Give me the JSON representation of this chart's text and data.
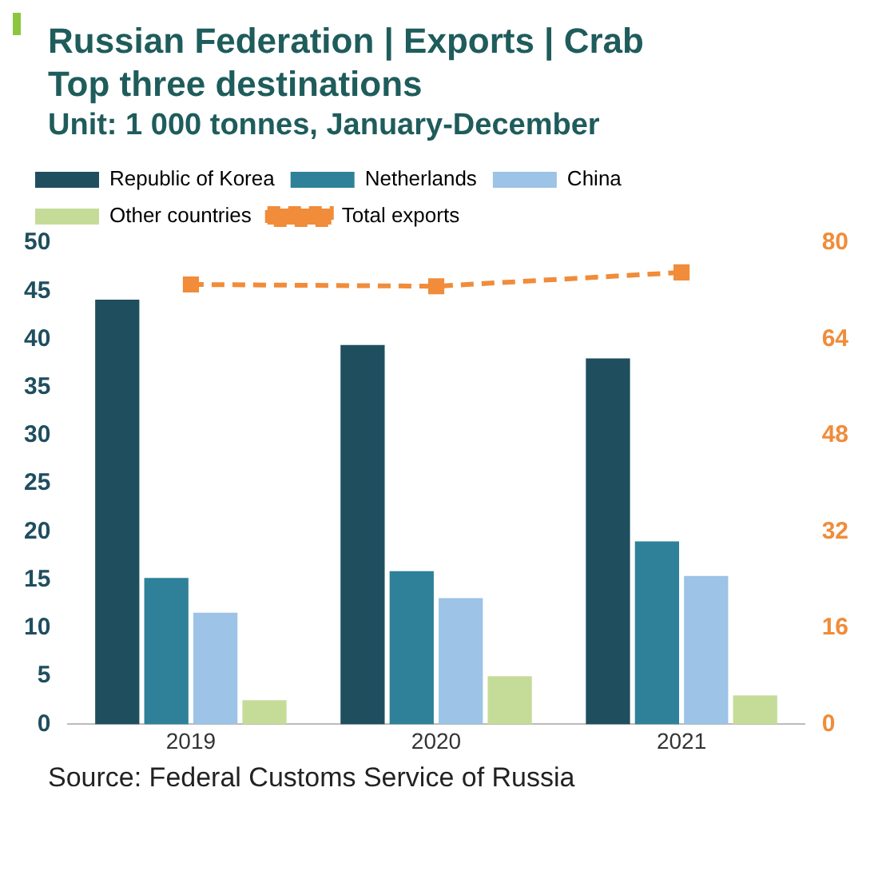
{
  "chart_data": {
    "type": "bar",
    "title": "Russian Federation | Exports | Crab",
    "subtitle": "Top three destinations",
    "xlabel": null,
    "annotations": [
      "Unit: 1 000 tonnes, January-December",
      "Source: Federal Customs Service of Russia"
    ],
    "categories": [
      "2019",
      "2020",
      "2021"
    ],
    "series": [
      {
        "name": "Republic of Korea",
        "color": "#1f4e5f",
        "values": [
          44.1,
          39.4,
          38.0
        ]
      },
      {
        "name": "Netherlands",
        "color": "#2e8199",
        "values": [
          15.2,
          15.9,
          19.0
        ]
      },
      {
        "name": "China",
        "color": "#9dc3e6",
        "values": [
          11.6,
          13.1,
          15.4
        ]
      },
      {
        "name": "Other countries",
        "color": "#c5dc98",
        "values": [
          2.5,
          5.0,
          3.0
        ]
      },
      {
        "name": "Total exports",
        "type": "line",
        "axis": "y2",
        "color": "#f08c3a",
        "marker": "square",
        "line_style": "dashed",
        "values": [
          73.1,
          72.8,
          75.1
        ]
      }
    ],
    "ylim": [
      0,
      50
    ],
    "yticks": [
      0,
      5,
      10,
      15,
      20,
      25,
      30,
      35,
      40,
      45,
      50
    ],
    "y2lim": [
      0,
      80
    ],
    "y2ticks": [
      0,
      16,
      32,
      48,
      64,
      80
    ],
    "grid": false,
    "legend": "top"
  }
}
